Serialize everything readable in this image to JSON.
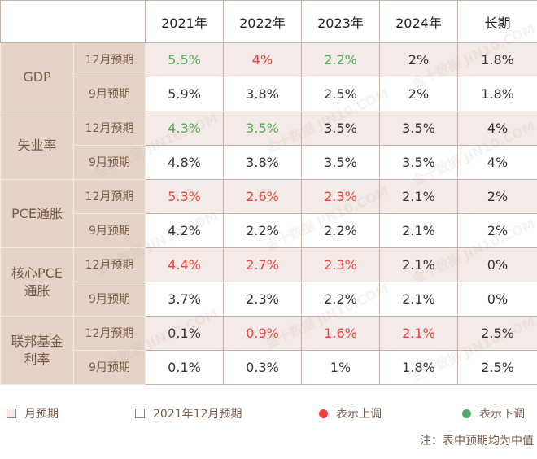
{
  "chart_data": {
    "type": "table",
    "columns": [
      "2021年",
      "2022年",
      "2023年",
      "2024年",
      "长期"
    ],
    "groups": [
      {
        "name": "GDP",
        "rows": [
          {
            "label": "12月预期",
            "values": [
              "5.5%",
              "4%",
              "2.2%",
              "2%",
              "1.8%"
            ],
            "trend": [
              "down",
              "up",
              "down",
              "",
              ""
            ]
          },
          {
            "label": "9月预期",
            "values": [
              "5.9%",
              "3.8%",
              "2.5%",
              "2%",
              "1.8%"
            ],
            "trend": [
              "",
              "",
              "",
              "",
              ""
            ]
          }
        ]
      },
      {
        "name": "失业率",
        "rows": [
          {
            "label": "12月预期",
            "values": [
              "4.3%",
              "3.5%",
              "3.5%",
              "3.5%",
              "4%"
            ],
            "trend": [
              "down",
              "down",
              "",
              "",
              ""
            ]
          },
          {
            "label": "9月预期",
            "values": [
              "4.8%",
              "3.8%",
              "3.5%",
              "3.5%",
              "4%"
            ],
            "trend": [
              "",
              "",
              "",
              "",
              ""
            ]
          }
        ]
      },
      {
        "name": "PCE通胀",
        "rows": [
          {
            "label": "12月预期",
            "values": [
              "5.3%",
              "2.6%",
              "2.3%",
              "2.1%",
              "2%"
            ],
            "trend": [
              "up",
              "up",
              "up",
              "",
              ""
            ]
          },
          {
            "label": "9月预期",
            "values": [
              "4.2%",
              "2.2%",
              "2.2%",
              "2.1%",
              "2%"
            ],
            "trend": [
              "",
              "",
              "",
              "",
              ""
            ]
          }
        ]
      },
      {
        "name": "核心PCE通胀",
        "rows": [
          {
            "label": "12月预期",
            "values": [
              "4.4%",
              "2.7%",
              "2.3%",
              "2.1%",
              "0%"
            ],
            "trend": [
              "up",
              "up",
              "up",
              "",
              ""
            ]
          },
          {
            "label": "9月预期",
            "values": [
              "3.7%",
              "2.3%",
              "2.2%",
              "2.1%",
              "0%"
            ],
            "trend": [
              "",
              "",
              "",
              "",
              ""
            ]
          }
        ]
      },
      {
        "name": "联邦基金利率",
        "rows": [
          {
            "label": "12月预期",
            "values": [
              "0.1%",
              "0.9%",
              "1.6%",
              "2.1%",
              "2.5%"
            ],
            "trend": [
              "",
              "up",
              "up",
              "up",
              ""
            ]
          },
          {
            "label": "9月预期",
            "values": [
              "0.1%",
              "0.3%",
              "1%",
              "1.8%",
              "2.5%"
            ],
            "trend": [
              "",
              "",
              "",
              "",
              ""
            ]
          }
        ]
      }
    ]
  },
  "legend": {
    "month_label": "月预期",
    "dec_label": "2021年12月预期",
    "up_label": "表示上调",
    "down_label": "表示下调"
  },
  "note": "注：表中预期均为中值",
  "watermark": "金十数据 JIN10.COM",
  "colors": {
    "up": "#f2413b",
    "down": "#4caf50",
    "label_bg": "#e6d3c8",
    "dec_bg": "#f4eae7"
  }
}
